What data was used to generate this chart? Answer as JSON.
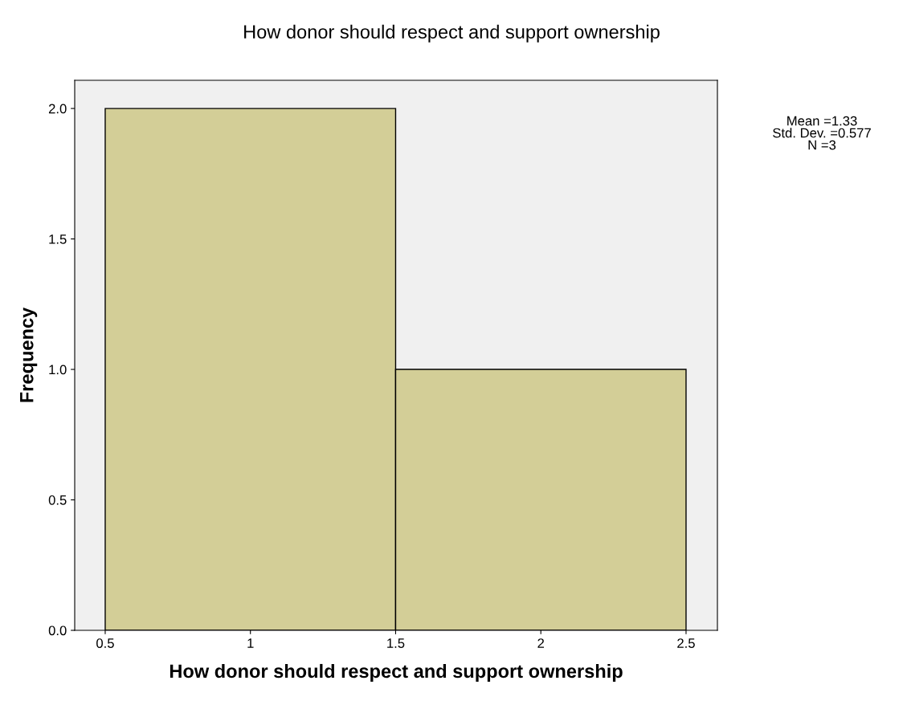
{
  "chart_data": {
    "type": "histogram",
    "title": "How donor should respect and support ownership",
    "xlabel": "How donor should respect and support ownership",
    "ylabel": "Frequency",
    "bins": [
      0.5,
      1.5,
      2.5
    ],
    "values": [
      2,
      1
    ],
    "color": "#d3ce97",
    "xlim": [
      0.395,
      2.608
    ],
    "ylim": [
      0,
      2.108
    ],
    "xticks": [
      0.5,
      1,
      1.5,
      2,
      2.5
    ],
    "yticks": [
      {
        "value": 0,
        "label": "0.0"
      },
      0.5,
      {
        "value": 1,
        "label": "1.0"
      },
      1.5,
      {
        "value": 2,
        "label": "2.0"
      }
    ],
    "annotations": [
      "Mean =1.33",
      "Std. Dev. =0.577",
      "N =3"
    ],
    "grid": false,
    "legend": false
  }
}
